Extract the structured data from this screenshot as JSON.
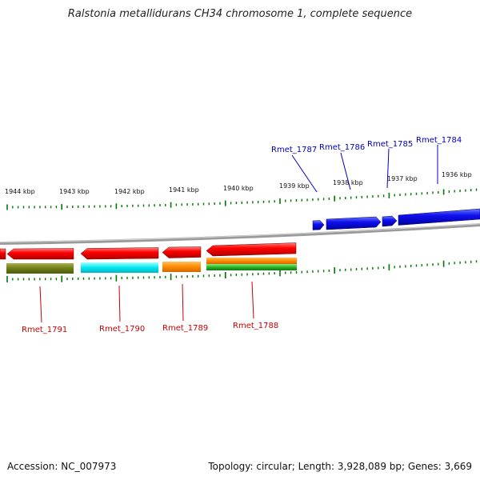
{
  "title": "Ralstonia metallidurans CH34 chromosome 1, complete sequence",
  "footer": {
    "accession": "Accession: NC_007973",
    "topology": "Topology: circular; Length: 3,928,089 bp; Genes: 3,669"
  },
  "colors": {
    "forward_gene": "#0000dd",
    "reverse_gene": "#ee0000",
    "label_forward": "#0000bb",
    "label_reverse": "#cc0000",
    "tick": "#007700",
    "backbone": "#888888"
  },
  "ticks": [
    "1944 kbp",
    "1943 kbp",
    "1942 kbp",
    "1941 kbp",
    "1940 kbp",
    "1939 kbp",
    "1938 kbp",
    "1937 kbp",
    "1936 kbp"
  ],
  "forward_genes": [
    "Rmet_1787",
    "Rmet_1786",
    "Rmet_1785",
    "Rmet_1784"
  ],
  "reverse_genes": [
    "Rmet_1791",
    "Rmet_1790",
    "Rmet_1789",
    "Rmet_1788"
  ]
}
